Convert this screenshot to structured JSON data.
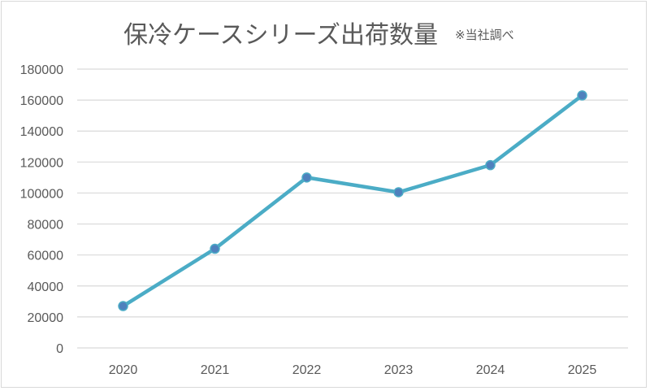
{
  "chart_data": {
    "type": "line",
    "title": "保冷ケースシリーズ出荷数量",
    "subtitle": "※当社調べ",
    "xlabel": "",
    "ylabel": "",
    "categories": [
      "2020",
      "2021",
      "2022",
      "2023",
      "2024",
      "2025"
    ],
    "series": [
      {
        "name": "出荷数量",
        "values": [
          27000,
          64000,
          110000,
          100500,
          118000,
          163000
        ],
        "color": "#4bacc6",
        "marker_color": "#4f81bd"
      }
    ],
    "ylim": [
      0,
      180000
    ],
    "yticks": [
      "0",
      "20000",
      "40000",
      "60000",
      "80000",
      "100000",
      "120000",
      "140000",
      "160000",
      "180000"
    ],
    "grid": true,
    "legend": "none"
  }
}
